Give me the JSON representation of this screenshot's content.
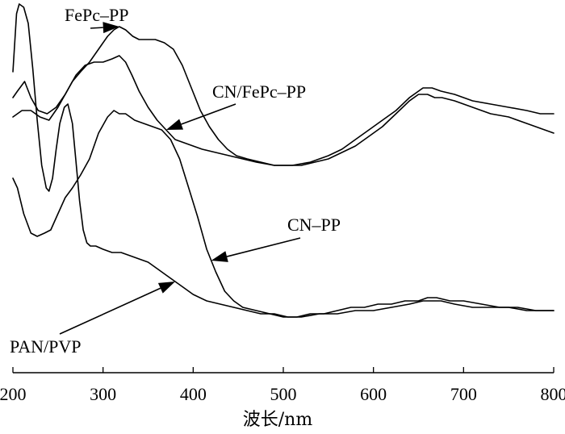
{
  "chart_data": {
    "type": "line",
    "title": "",
    "xlabel": "波长/nm",
    "ylabel": "",
    "xlim": [
      200,
      800
    ],
    "xticks": [
      200,
      300,
      400,
      500,
      600,
      700,
      800
    ],
    "x_tick_labels": [
      "200",
      "300",
      "400",
      "500",
      "600",
      "700",
      "800"
    ],
    "ylim": [
      0,
      1
    ],
    "y_axis_visible": false,
    "grid": false,
    "legend": "none",
    "line_color": "#000000",
    "series": [
      {
        "name": "FePc–PP",
        "x": [
          200,
          205,
          213,
          220,
          228,
          238,
          248,
          258,
          266,
          275,
          285,
          295,
          305,
          312,
          318,
          325,
          333,
          340,
          348,
          358,
          368,
          378,
          388,
          398,
          408,
          418,
          428,
          438,
          448,
          460,
          475,
          490,
          505,
          520,
          535,
          550,
          565,
          580,
          595,
          610,
          625,
          640,
          650,
          660,
          668,
          676,
          690,
          710,
          730,
          750,
          770,
          790,
          800
        ],
        "y": [
          0.71,
          0.73,
          0.76,
          0.71,
          0.67,
          0.66,
          0.68,
          0.72,
          0.76,
          0.79,
          0.82,
          0.86,
          0.9,
          0.92,
          0.93,
          0.92,
          0.9,
          0.89,
          0.89,
          0.89,
          0.88,
          0.86,
          0.81,
          0.74,
          0.67,
          0.62,
          0.58,
          0.55,
          0.53,
          0.52,
          0.51,
          0.5,
          0.5,
          0.5,
          0.51,
          0.52,
          0.54,
          0.56,
          0.59,
          0.62,
          0.66,
          0.7,
          0.72,
          0.72,
          0.71,
          0.71,
          0.7,
          0.68,
          0.66,
          0.65,
          0.63,
          0.61,
          0.6
        ]
      },
      {
        "name": "CN/FePc–PP",
        "x": [
          200,
          210,
          220,
          230,
          240,
          250,
          260,
          270,
          280,
          290,
          300,
          310,
          318,
          325,
          332,
          340,
          350,
          360,
          370,
          380,
          390,
          400,
          410,
          425,
          440,
          455,
          470,
          490,
          510,
          530,
          550,
          565,
          580,
          595,
          610,
          625,
          640,
          655,
          665,
          675,
          690,
          710,
          730,
          750,
          770,
          785,
          800
        ],
        "y": [
          0.65,
          0.67,
          0.67,
          0.65,
          0.64,
          0.68,
          0.73,
          0.78,
          0.81,
          0.82,
          0.82,
          0.83,
          0.84,
          0.82,
          0.78,
          0.73,
          0.68,
          0.64,
          0.61,
          0.58,
          0.57,
          0.56,
          0.55,
          0.54,
          0.53,
          0.52,
          0.51,
          0.5,
          0.5,
          0.51,
          0.53,
          0.55,
          0.58,
          0.61,
          0.64,
          0.67,
          0.71,
          0.74,
          0.74,
          0.73,
          0.72,
          0.7,
          0.69,
          0.68,
          0.67,
          0.66,
          0.66
        ]
      },
      {
        "name": "CN–PP",
        "x": [
          200,
          205,
          212,
          220,
          227,
          235,
          242,
          250,
          258,
          266,
          275,
          285,
          295,
          305,
          312,
          318,
          325,
          335,
          345,
          355,
          365,
          375,
          385,
          395,
          405,
          415,
          425,
          435,
          445,
          455,
          470,
          485,
          500,
          515,
          530,
          545,
          560,
          575,
          590,
          605,
          620,
          635,
          650,
          660,
          670,
          685,
          700,
          720,
          740,
          760,
          780,
          800
        ],
        "y": [
          0.46,
          0.43,
          0.35,
          0.29,
          0.28,
          0.29,
          0.3,
          0.35,
          0.4,
          0.43,
          0.47,
          0.52,
          0.6,
          0.65,
          0.67,
          0.66,
          0.66,
          0.64,
          0.63,
          0.62,
          0.61,
          0.58,
          0.52,
          0.43,
          0.34,
          0.24,
          0.17,
          0.11,
          0.08,
          0.06,
          0.05,
          0.04,
          0.03,
          0.03,
          0.04,
          0.04,
          0.05,
          0.06,
          0.06,
          0.07,
          0.07,
          0.08,
          0.08,
          0.09,
          0.09,
          0.08,
          0.08,
          0.07,
          0.06,
          0.06,
          0.05,
          0.05
        ]
      },
      {
        "name": "PAN/PVP",
        "x": [
          200,
          204,
          207,
          212,
          217,
          222,
          227,
          232,
          237,
          240,
          244,
          248,
          252,
          257,
          261,
          266,
          270,
          274,
          278,
          282,
          286,
          292,
          300,
          310,
          320,
          330,
          340,
          350,
          360,
          370,
          380,
          390,
          400,
          415,
          430,
          445,
          460,
          475,
          490,
          505,
          520,
          540,
          560,
          580,
          600,
          620,
          640,
          655,
          665,
          675,
          690,
          710,
          730,
          750,
          770,
          790,
          800
        ],
        "y": [
          0.79,
          0.97,
          1.0,
          0.99,
          0.94,
          0.8,
          0.64,
          0.5,
          0.43,
          0.42,
          0.46,
          0.55,
          0.63,
          0.68,
          0.69,
          0.63,
          0.51,
          0.39,
          0.3,
          0.26,
          0.25,
          0.25,
          0.24,
          0.23,
          0.23,
          0.22,
          0.21,
          0.2,
          0.18,
          0.16,
          0.14,
          0.12,
          0.1,
          0.08,
          0.07,
          0.06,
          0.05,
          0.04,
          0.04,
          0.03,
          0.03,
          0.04,
          0.04,
          0.05,
          0.05,
          0.06,
          0.07,
          0.08,
          0.08,
          0.08,
          0.07,
          0.06,
          0.06,
          0.06,
          0.05,
          0.05,
          0.05
        ]
      }
    ],
    "annotations": [
      {
        "text": "FePc–PP",
        "points_to_series": "FePc–PP",
        "points_to_x": 318
      },
      {
        "text": "CN/FePc–PP",
        "points_to_series": "CN/FePc–PP",
        "points_to_x": 370
      },
      {
        "text": "CN–PP",
        "points_to_series": "CN–PP",
        "points_to_x": 420
      },
      {
        "text": "PAN/PVP",
        "points_to_series": "PAN/PVP",
        "points_to_x": 380
      }
    ]
  }
}
